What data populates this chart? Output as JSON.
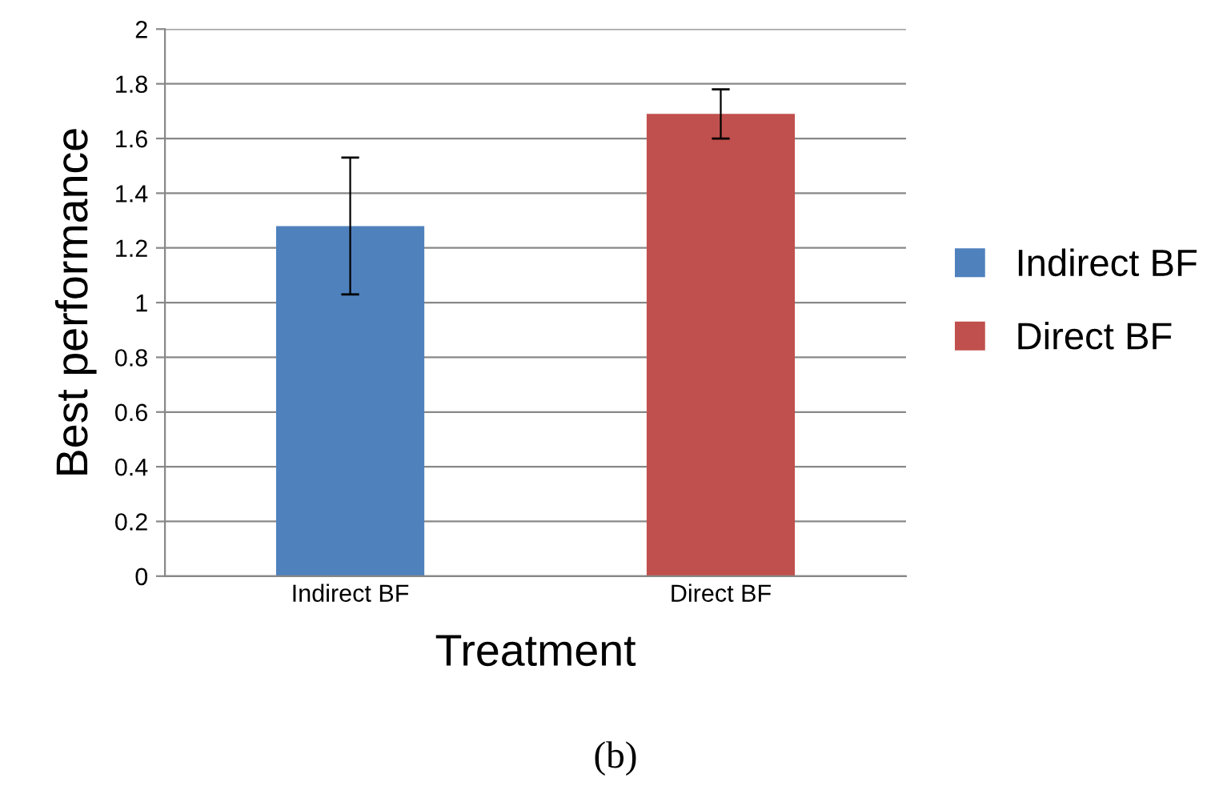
{
  "chart_data": {
    "type": "bar",
    "xlabel": "Treatment",
    "ylabel": "Best performance",
    "categories": [
      "Indirect BF",
      "Direct BF"
    ],
    "series": [
      {
        "name": "Indirect BF",
        "color": "#4f81bd",
        "values": [
          1.28,
          null
        ],
        "errors": [
          [
            1.03,
            1.53
          ],
          null
        ]
      },
      {
        "name": "Direct BF",
        "color": "#c0504d",
        "values": [
          null,
          1.69
        ],
        "errors": [
          null,
          [
            1.6,
            1.78
          ]
        ]
      }
    ],
    "ylim": [
      0,
      2
    ],
    "yticks": [
      0,
      0.2,
      0.4,
      0.6,
      0.8,
      1,
      1.2,
      1.4,
      1.6,
      1.8,
      2
    ],
    "grid": "y",
    "legend": "right",
    "annotations": [
      "(b)"
    ]
  }
}
